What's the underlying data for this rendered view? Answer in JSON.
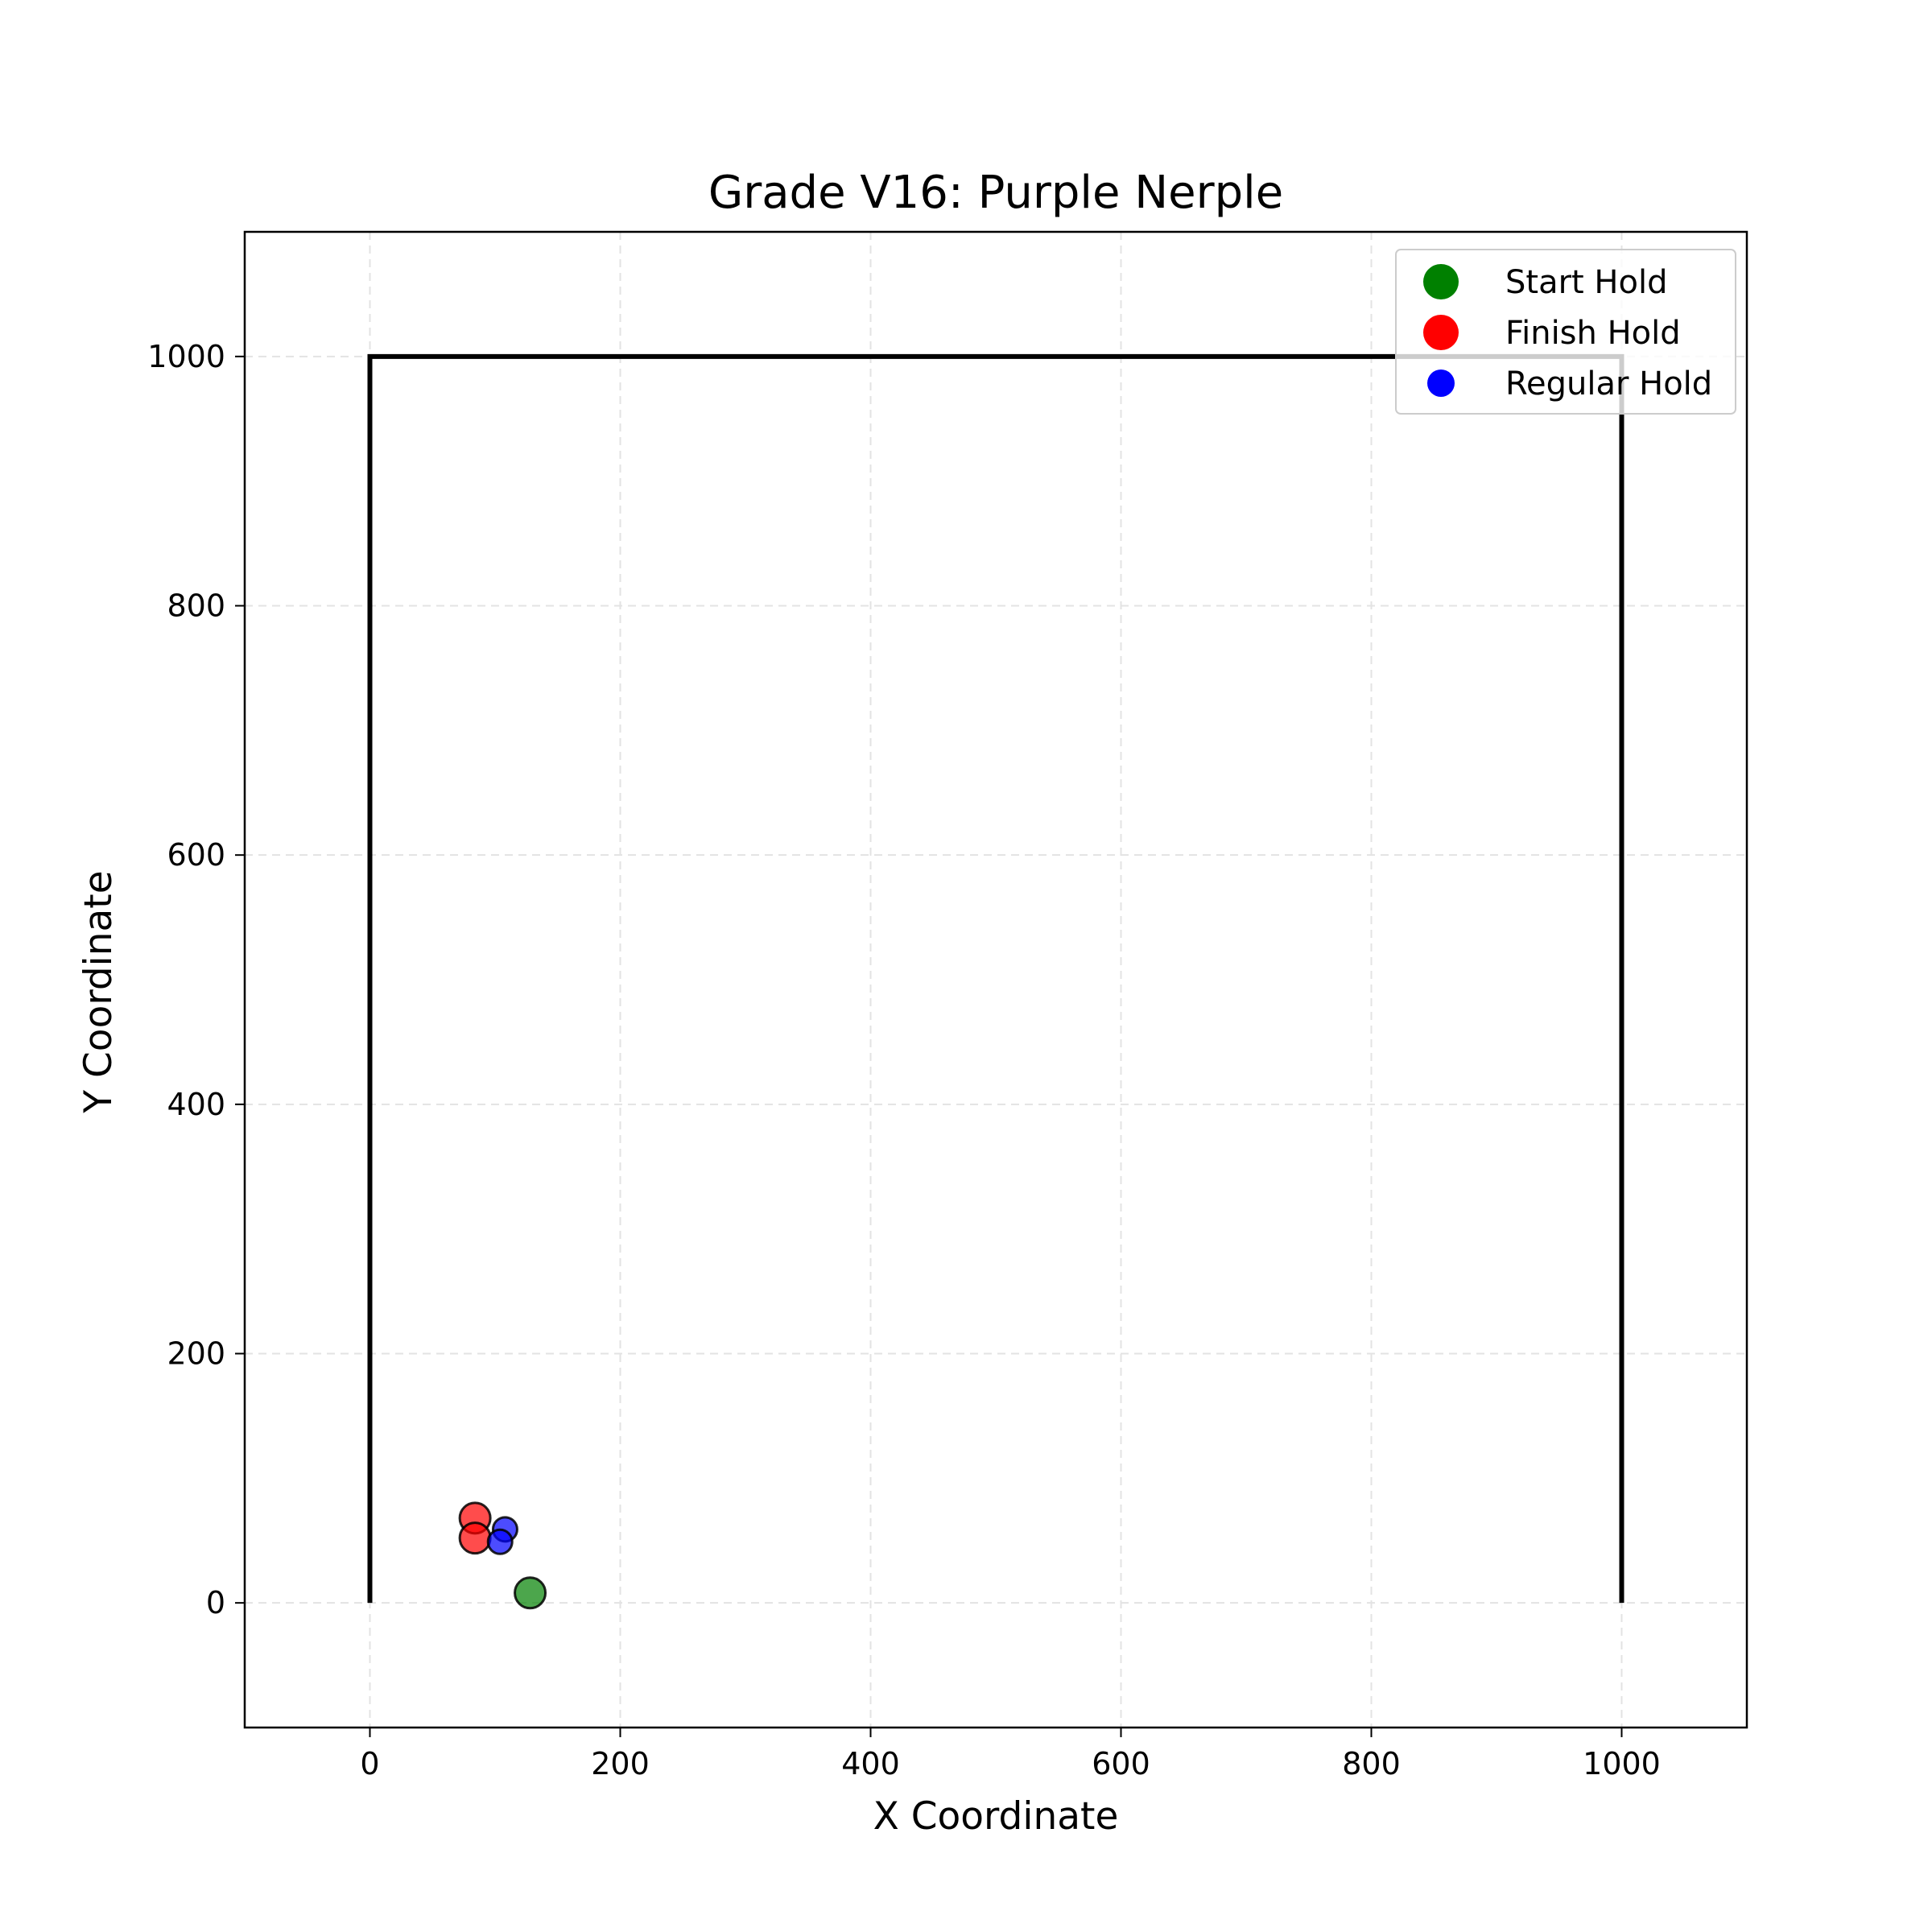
{
  "chart_data": {
    "type": "scatter",
    "title": "Grade V16: Purple Nerple",
    "xlabel": "X Coordinate",
    "ylabel": "Y Coordinate",
    "xlim": [
      -100,
      1100
    ],
    "ylim": [
      -100,
      1100
    ],
    "xticks": [
      "0",
      "200",
      "400",
      "600",
      "800",
      "1000"
    ],
    "yticks": [
      "0",
      "200",
      "400",
      "600",
      "800",
      "1000"
    ],
    "grid": true,
    "legend_position": "top-right",
    "wall_outline": {
      "x": [
        0,
        0,
        1000,
        1000
      ],
      "y": [
        0,
        1000,
        1000,
        0
      ]
    },
    "series": [
      {
        "name": "Start Hold",
        "color": "#008000",
        "points": [
          {
            "x": 128,
            "y": 8
          }
        ]
      },
      {
        "name": "Finish Hold",
        "color": "#ff0000",
        "points": [
          {
            "x": 84,
            "y": 68
          },
          {
            "x": 84,
            "y": 52
          }
        ]
      },
      {
        "name": "Regular Hold",
        "color": "#0000ff",
        "points": [
          {
            "x": 108,
            "y": 59
          },
          {
            "x": 104,
            "y": 49
          }
        ]
      }
    ]
  }
}
